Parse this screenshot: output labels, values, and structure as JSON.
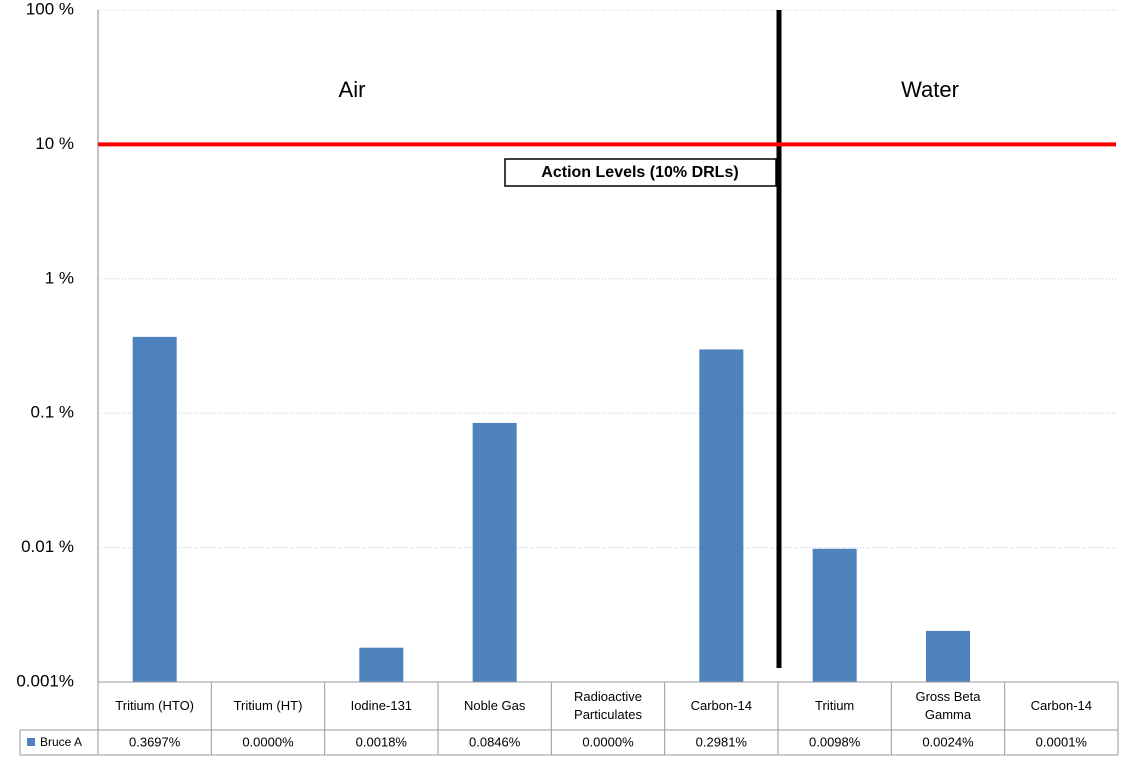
{
  "chart_data": {
    "type": "bar",
    "log_scale": true,
    "categories": [
      "Tritium (HTO)",
      "Tritium (HT)",
      "Iodine-131",
      "Noble Gas",
      "Radioactive Particulates",
      "Carbon-14",
      "Tritium",
      "Gross Beta Gamma",
      "Carbon-14"
    ],
    "series": [
      {
        "name": "Bruce A",
        "color": "#4f81bd",
        "values": [
          0.3697,
          0,
          0.0018,
          0.0846,
          0,
          0.2981,
          0.0098,
          0.0024,
          0.0001
        ],
        "value_labels": [
          "0.3697%",
          "0.0000%",
          "0.0018%",
          "0.0846%",
          "0.0000%",
          "0.2981%",
          "0.0098%",
          "0.0024%",
          "0.0001%"
        ]
      }
    ],
    "ylim": [
      0.001,
      100
    ],
    "yticks": [
      {
        "value": 0.001,
        "label": "0.001%"
      },
      {
        "value": 0.01,
        "label": "0.01 %"
      },
      {
        "value": 0.1,
        "label": "0.1 %"
      },
      {
        "value": 1,
        "label": "1 %"
      },
      {
        "value": 10,
        "label": "10 %"
      },
      {
        "value": 100,
        "label": "100 %"
      }
    ],
    "grid": true,
    "action_level": 10,
    "action_level_color": "#ff0000",
    "annotations": {
      "air": "Air",
      "water": "Water",
      "action": "Action Levels (10% DRLs)"
    }
  }
}
